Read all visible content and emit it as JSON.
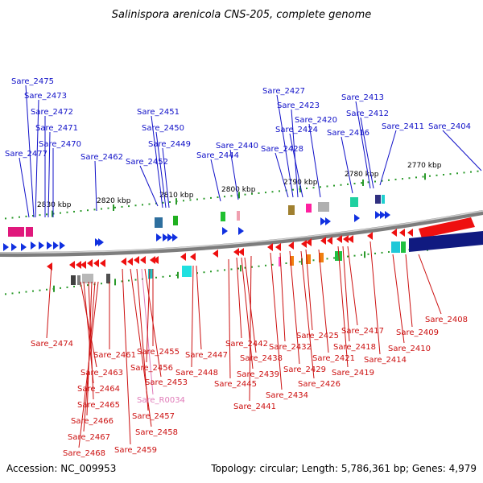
{
  "title": "Salinispora arenicola CNS-205, complete genome",
  "accession": "Accession: NC_009953",
  "summary": "Topology: circular; Length: 5,786,361 bp; Genes: 4,979",
  "colors": {
    "forward_label": "#1010c8",
    "reverse_label": "#cc1010",
    "rna_label": "#e07ab8",
    "backbone": "#8a8a8a",
    "tick": "#2a9a2a"
  },
  "scale_labels": [
    "2830 kbp",
    "2820 kbp",
    "2810 kbp",
    "2800 kbp",
    "2790 kbp",
    "2780 kbp",
    "2770 kbp"
  ],
  "forward_genes": [
    "Sare_2475",
    "Sare_2473",
    "Sare_2472",
    "Sare_2471",
    "Sare_2470",
    "Sare_2477",
    "Sare_2462",
    "Sare_2451",
    "Sare_2450",
    "Sare_2449",
    "Sare_2452",
    "Sare_2444",
    "Sare_2440",
    "Sare_2427",
    "Sare_2423",
    "Sare_2424",
    "Sare_2420",
    "Sare_2428",
    "Sare_2416",
    "Sare_2413",
    "Sare_2412",
    "Sare_2411",
    "Sare_2404"
  ],
  "reverse_genes": [
    "Sare_2474",
    "Sare_2461",
    "Sare_2463",
    "Sare_2464",
    "Sare_2465",
    "Sare_2466",
    "Sare_2467",
    "Sare_2468",
    "Sare_2459",
    "Sare_2458",
    "Sare_2457",
    "Sare_R0034",
    "Sare_2453",
    "Sare_2456",
    "Sare_2455",
    "Sare_2448",
    "Sare_2447",
    "Sare_2445",
    "Sare_2442",
    "Sare_2439",
    "Sare_2438",
    "Sare_2441",
    "Sare_2434",
    "Sare_2432",
    "Sare_2429",
    "Sare_2426",
    "Sare_2425",
    "Sare_2421",
    "Sare_2419",
    "Sare_2418",
    "Sare_2417",
    "Sare_2414",
    "Sare_2410",
    "Sare_2409",
    "Sare_2408"
  ]
}
